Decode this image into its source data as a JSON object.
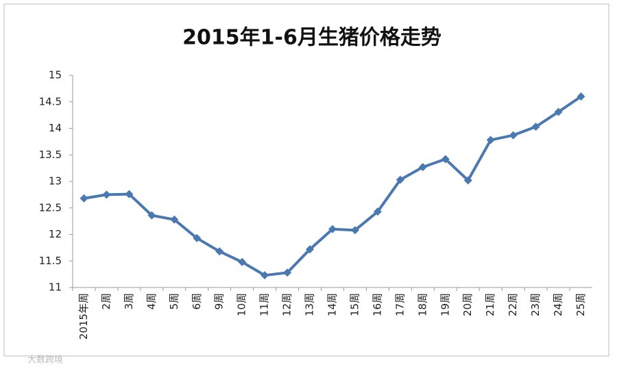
{
  "chart_data": {
    "type": "line",
    "title": "2015年1-6月生猪价格走势",
    "categories": [
      "2015年周",
      "2周",
      "3周",
      "4周",
      "5周",
      "6周",
      "9周",
      "10周",
      "11周",
      "12周",
      "13周",
      "14周",
      "15周",
      "16周",
      "17周",
      "18周",
      "19周",
      "20周",
      "21周",
      "22周",
      "23周",
      "24周",
      "25周"
    ],
    "series": [
      {
        "name": "生猪价格",
        "color": "#4a78b0",
        "values": [
          12.68,
          12.75,
          12.76,
          12.36,
          12.28,
          11.93,
          11.68,
          11.48,
          11.23,
          11.28,
          11.72,
          12.1,
          12.08,
          12.43,
          13.03,
          13.27,
          13.42,
          13.02,
          13.78,
          13.87,
          14.03,
          14.31,
          14.6
        ]
      }
    ],
    "ylim": [
      11,
      15
    ],
    "yticks": [
      11,
      11.5,
      12,
      12.5,
      13,
      13.5,
      14,
      14.5,
      15
    ],
    "grid": false,
    "watermark": "大数跨境"
  }
}
